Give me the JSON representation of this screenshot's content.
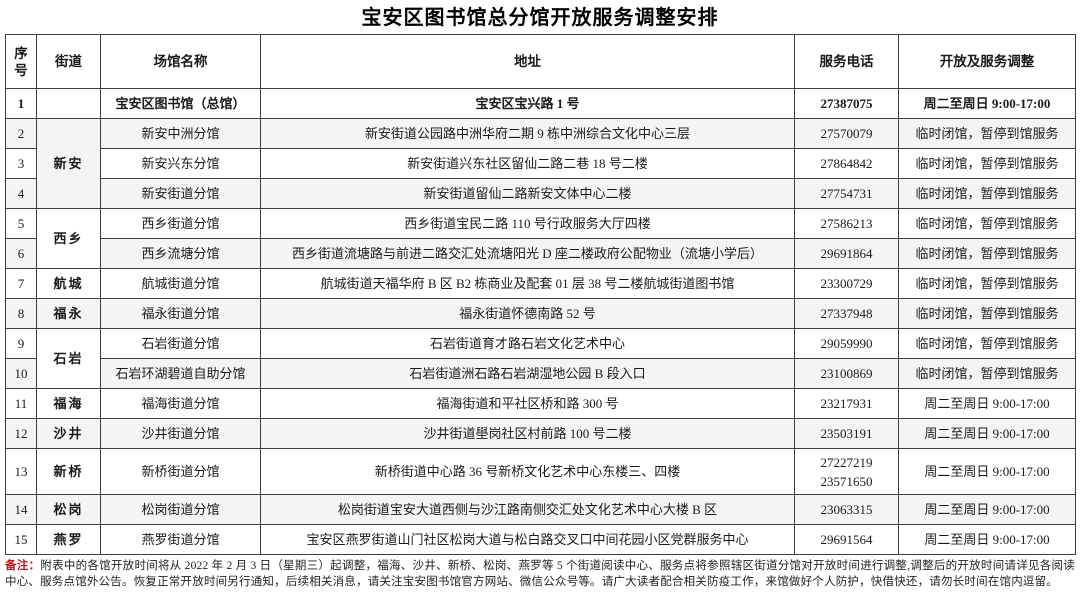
{
  "title": "宝安区图书馆总分馆开放服务调整安排",
  "table": {
    "headers": [
      "序号",
      "街道",
      "场馆名称",
      "地址",
      "服务电话",
      "开放及服务调整"
    ],
    "rows": [
      {
        "no": "1",
        "street": "",
        "street_span": 1,
        "venue": "宝安区图书馆（总馆）",
        "address": "宝安区宝兴路 1 号",
        "phones": [
          "27387075"
        ],
        "adjustment": "周二至周日 9:00-17:00",
        "bold": true,
        "shaded": false
      },
      {
        "no": "2",
        "street": "新安",
        "street_span": 3,
        "venue": "新安中洲分馆",
        "address": "新安街道公园路中洲华府二期 9 栋中洲综合文化中心三层",
        "phones": [
          "27570079"
        ],
        "adjustment": "临时闭馆，暂停到馆服务",
        "bold": false,
        "shaded": true
      },
      {
        "no": "3",
        "street": null,
        "street_span": 0,
        "venue": "新安兴东分馆",
        "address": "新安街道兴东社区留仙二路二巷 18 号二楼",
        "phones": [
          "27864842"
        ],
        "adjustment": "临时闭馆，暂停到馆服务",
        "bold": false,
        "shaded": false
      },
      {
        "no": "4",
        "street": null,
        "street_span": 0,
        "venue": "新安街道分馆",
        "address": "新安街道留仙二路新安文体中心二楼",
        "phones": [
          "27754731"
        ],
        "adjustment": "临时闭馆，暂停到馆服务",
        "bold": false,
        "shaded": true
      },
      {
        "no": "5",
        "street": "西乡",
        "street_span": 2,
        "venue": "西乡街道分馆",
        "address": "西乡街道宝民二路 110 号行政服务大厅四楼",
        "phones": [
          "27586213"
        ],
        "adjustment": "临时闭馆，暂停到馆服务",
        "bold": false,
        "shaded": false
      },
      {
        "no": "6",
        "street": null,
        "street_span": 0,
        "venue": "西乡流塘分馆",
        "address": "西乡街道流塘路与前进二路交汇处流塘阳光 D 座二楼政府公配物业（流塘小学后）",
        "phones": [
          "29691864"
        ],
        "adjustment": "临时闭馆，暂停到馆服务",
        "bold": false,
        "shaded": true
      },
      {
        "no": "7",
        "street": "航城",
        "street_span": 1,
        "venue": "航城街道分馆",
        "address": "航城街道天福华府 B 区 B2 栋商业及配套 01 层 38 号二楼航城街道图书馆",
        "phones": [
          "23300729"
        ],
        "adjustment": "临时闭馆，暂停到馆服务",
        "bold": false,
        "shaded": false
      },
      {
        "no": "8",
        "street": "福永",
        "street_span": 1,
        "venue": "福永街道分馆",
        "address": "福永街道怀德南路 52 号",
        "phones": [
          "27337948"
        ],
        "adjustment": "临时闭馆，暂停到馆服务",
        "bold": false,
        "shaded": true
      },
      {
        "no": "9",
        "street": "石岩",
        "street_span": 2,
        "venue": "石岩街道分馆",
        "address": "石岩街道育才路石岩文化艺术中心",
        "phones": [
          "29059990"
        ],
        "adjustment": "临时闭馆，暂停到馆服务",
        "bold": false,
        "shaded": false
      },
      {
        "no": "10",
        "street": null,
        "street_span": 0,
        "venue": "石岩环湖碧道自助分馆",
        "address": "石岩街道洲石路石岩湖湿地公园 B 段入口",
        "phones": [
          "23100869"
        ],
        "adjustment": "临时闭馆，暂停到馆服务",
        "bold": false,
        "shaded": true
      },
      {
        "no": "11",
        "street": "福海",
        "street_span": 1,
        "venue": "福海街道分馆",
        "address": "福海街道和平社区桥和路 300 号",
        "phones": [
          "23217931"
        ],
        "adjustment": "周二至周日 9:00-17:00",
        "bold": false,
        "shaded": false
      },
      {
        "no": "12",
        "street": "沙井",
        "street_span": 1,
        "venue": "沙井街道分馆",
        "address": "沙井街道壆岗社区村前路 100 号二楼",
        "phones": [
          "23503191"
        ],
        "adjustment": "周二至周日 9:00-17:00",
        "bold": false,
        "shaded": true
      },
      {
        "no": "13",
        "street": "新桥",
        "street_span": 1,
        "venue": "新桥街道分馆",
        "address": "新桥街道中心路 36 号新桥文化艺术中心东楼三、四楼",
        "phones": [
          "27227219",
          "23571650"
        ],
        "adjustment": "周二至周日 9:00-17:00",
        "bold": false,
        "shaded": false,
        "tall": true
      },
      {
        "no": "14",
        "street": "松岗",
        "street_span": 1,
        "venue": "松岗街道分馆",
        "address": "松岗街道宝安大道西侧与沙江路南侧交汇处文化艺术中心大楼 B 区",
        "phones": [
          "23063315"
        ],
        "adjustment": "周二至周日 9:00-17:00",
        "bold": false,
        "shaded": true
      },
      {
        "no": "15",
        "street": "燕罗",
        "street_span": 1,
        "venue": "燕罗街道分馆",
        "address": "宝安区燕罗街道山门社区松岗大道与松白路交叉口中间花园小区党群服务中心",
        "phones": [
          "29691564"
        ],
        "adjustment": "周二至周日 9:00-17:00",
        "bold": false,
        "shaded": false
      }
    ]
  },
  "footnote": {
    "label": "备注：",
    "text": "附表中的各馆开放时间将从 2022 年 2 月 3 日（星期三）起调整，福海、沙井、新桥、松岗、燕罗等 5 个街道阅读中心、服务点将参照辖区街道分馆对开放时间进行调整,调整后的开放时间请详见各阅读中心、服务点馆外公告。恢复正常开放时间另行通知，后续相关消息，请关注宝安图书馆官方网站、微信公众号等。请广大读者配合相关防疫工作，来馆做好个人防护，快借快还，请勿长时间在馆内逗留。"
  }
}
